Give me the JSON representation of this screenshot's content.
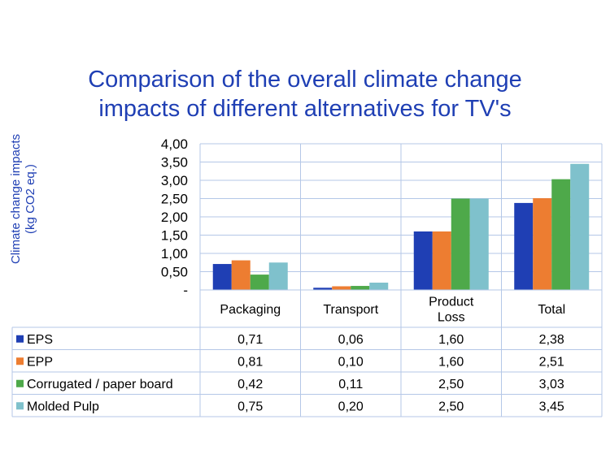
{
  "title_lines": [
    "Comparison of the overall climate change",
    "impacts of different alternatives for TV's"
  ],
  "colors": {
    "title": "#1f3fb4",
    "grid": "#b4c7e7",
    "axis_text": "#000000",
    "table_border": "#b4c7e7"
  },
  "chart_data": {
    "type": "bar",
    "title": "Comparison of the overall climate change impacts of different alternatives for TV's",
    "ylabel_lines": [
      "Climate change impacts",
      "(kg CO2 eq.)"
    ],
    "ylim": [
      0,
      4.0
    ],
    "ytick_labels": [
      "-",
      "0,50",
      "1,00",
      "1,50",
      "2,00",
      "2,50",
      "3,00",
      "3,50",
      "4,00"
    ],
    "categories": [
      [
        "Packaging"
      ],
      [
        "Transport"
      ],
      [
        "Product",
        "Loss"
      ],
      [
        "Total"
      ]
    ],
    "series": [
      {
        "name": "EPS",
        "color": "#1f3fb4",
        "values": [
          0.71,
          0.06,
          1.6,
          2.38
        ],
        "labels": [
          "0,71",
          "0,06",
          "1,60",
          "2,38"
        ]
      },
      {
        "name": "EPP",
        "color": "#ed7d31",
        "values": [
          0.81,
          0.1,
          1.6,
          2.51
        ],
        "labels": [
          "0,81",
          "0,10",
          "1,60",
          "2,51"
        ]
      },
      {
        "name": "Corrugated / paper board",
        "color": "#4ea94a",
        "values": [
          0.42,
          0.11,
          2.5,
          3.03
        ],
        "labels": [
          "0,42",
          "0,11",
          "2,50",
          "3,03"
        ]
      },
      {
        "name": "Molded Pulp",
        "color": "#7fc1cc",
        "values": [
          0.75,
          0.2,
          2.5,
          3.45
        ],
        "labels": [
          "0,75",
          "0,20",
          "2,50",
          "3,45"
        ]
      }
    ],
    "grid": true,
    "legend": "data-table"
  }
}
